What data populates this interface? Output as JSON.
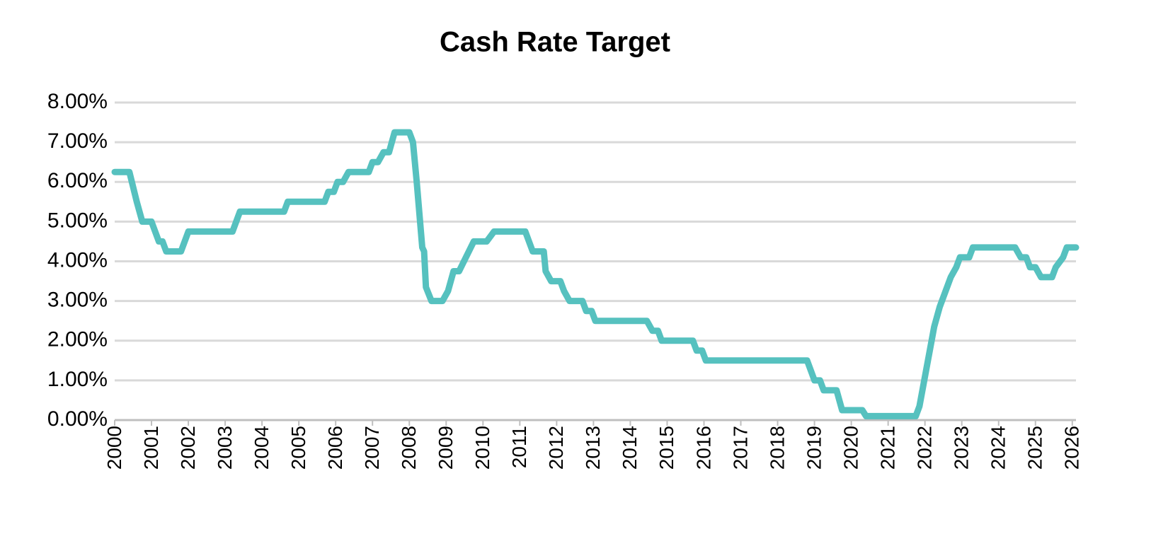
{
  "chart_data": {
    "type": "line",
    "title": "Cash Rate Target",
    "x": [
      2000.0,
      2000.4,
      2000.6,
      2000.75,
      2001.0,
      2001.2,
      2001.3,
      2001.4,
      2001.8,
      2002.0,
      2003.2,
      2003.4,
      2004.6,
      2004.7,
      2005.7,
      2005.8,
      2005.95,
      2006.05,
      2006.2,
      2006.35,
      2006.9,
      2007.0,
      2007.15,
      2007.3,
      2007.45,
      2007.6,
      2008.0,
      2008.1,
      2008.2,
      2008.35,
      2008.4,
      2008.45,
      2008.6,
      2008.9,
      2009.05,
      2009.2,
      2009.35,
      2009.75,
      2010.1,
      2010.3,
      2011.15,
      2011.35,
      2011.65,
      2011.7,
      2011.85,
      2012.1,
      2012.2,
      2012.35,
      2012.7,
      2012.8,
      2012.95,
      2013.05,
      2014.45,
      2014.6,
      2014.75,
      2014.85,
      2015.7,
      2015.8,
      2015.95,
      2016.05,
      2018.8,
      2019.0,
      2019.15,
      2019.25,
      2019.6,
      2019.75,
      2020.3,
      2020.4,
      2021.75,
      2021.85,
      2021.95,
      2022.05,
      2022.15,
      2022.25,
      2022.4,
      2022.5,
      2022.6,
      2022.7,
      2022.85,
      2022.95,
      2023.2,
      2023.3,
      2024.45,
      2024.6,
      2024.75,
      2024.85,
      2025.0,
      2025.15,
      2025.45,
      2025.55,
      2025.75,
      2025.85,
      2026.1
    ],
    "values": [
      6.25,
      6.25,
      5.5,
      5.0,
      5.0,
      4.5,
      4.5,
      4.25,
      4.25,
      4.75,
      4.75,
      5.25,
      5.25,
      5.5,
      5.5,
      5.75,
      5.75,
      6.0,
      6.0,
      6.25,
      6.25,
      6.5,
      6.5,
      6.75,
      6.75,
      7.25,
      7.25,
      7.0,
      6.0,
      4.35,
      4.25,
      3.35,
      3.0,
      3.0,
      3.25,
      3.75,
      3.75,
      4.5,
      4.5,
      4.75,
      4.75,
      4.25,
      4.25,
      3.75,
      3.5,
      3.5,
      3.25,
      3.0,
      3.0,
      2.75,
      2.75,
      2.5,
      2.5,
      2.25,
      2.25,
      2.0,
      2.0,
      1.75,
      1.75,
      1.5,
      1.5,
      1.0,
      1.0,
      0.75,
      0.75,
      0.25,
      0.25,
      0.1,
      0.1,
      0.35,
      0.85,
      1.35,
      1.85,
      2.35,
      2.85,
      3.1,
      3.35,
      3.6,
      3.85,
      4.1,
      4.1,
      4.35,
      4.35,
      4.1,
      4.1,
      3.85,
      3.85,
      3.6,
      3.6,
      3.85,
      4.1,
      4.35,
      4.35
    ],
    "color": "#56c1bf",
    "xlim": [
      2000,
      2026.1
    ],
    "xticks": [
      2000,
      2001,
      2002,
      2003,
      2004,
      2005,
      2006,
      2007,
      2008,
      2009,
      2010,
      2011,
      2012,
      2013,
      2014,
      2015,
      2016,
      2017,
      2018,
      2019,
      2020,
      2021,
      2022,
      2023,
      2024,
      2025,
      2026
    ],
    "ylim": [
      0,
      8
    ],
    "yticks": [
      {
        "value": 0,
        "label": "0.00%"
      },
      {
        "value": 1,
        "label": "1.00%"
      },
      {
        "value": 2,
        "label": "2.00%"
      },
      {
        "value": 3,
        "label": "3.00%"
      },
      {
        "value": 4,
        "label": "4.00%"
      },
      {
        "value": 5,
        "label": "5.00%"
      },
      {
        "value": 6,
        "label": "6.00%"
      },
      {
        "value": 7,
        "label": "7.00%"
      },
      {
        "value": 8,
        "label": "8.00%"
      }
    ],
    "grid": true
  }
}
